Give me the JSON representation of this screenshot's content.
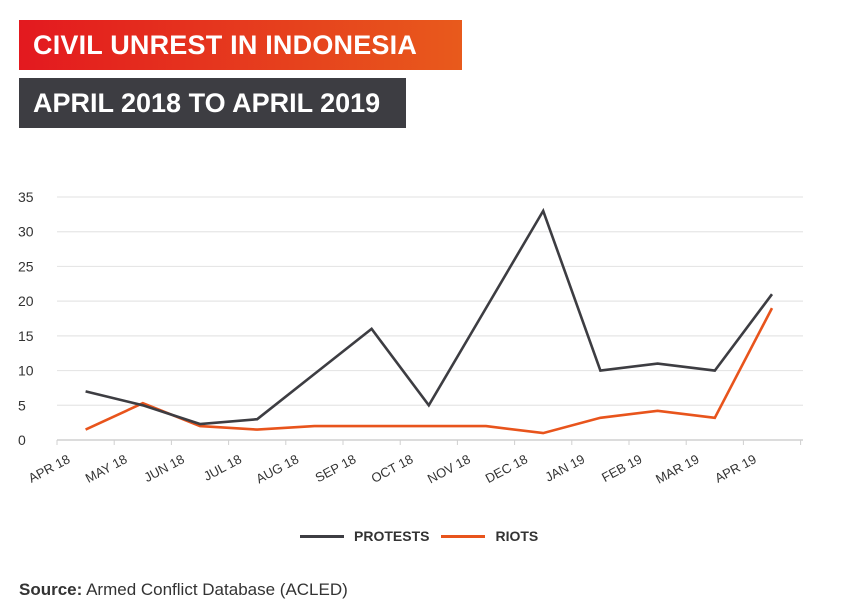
{
  "header": {
    "title": "CIVIL UNREST IN INDONESIA",
    "subtitle": "APRIL 2018 TO APRIL 2019",
    "title_gradient": [
      "#e3191f",
      "#e85a1c"
    ],
    "subtitle_bg": "#3d3d42"
  },
  "legend": {
    "items": [
      {
        "label": "PROTESTS",
        "color": "#3d3d42"
      },
      {
        "label": "RIOTS",
        "color": "#e8541c"
      }
    ]
  },
  "footer": {
    "source_label": "Source:",
    "source_text": " Armed Conflict Database (ACLED)"
  },
  "chart_data": {
    "type": "line",
    "title": "CIVIL UNREST IN INDONESIA — APRIL 2018 TO APRIL 2019",
    "xlabel": "",
    "ylabel": "",
    "categories": [
      "APR 18",
      "MAY 18",
      "JUN 18",
      "JUL 18",
      "AUG 18",
      "SEP 18",
      "OCT 18",
      "NOV 18",
      "DEC 18",
      "JAN 19",
      "FEB 19",
      "MAR 19",
      "APR 19"
    ],
    "series": [
      {
        "name": "PROTESTS",
        "color": "#3d3d42",
        "values": [
          7,
          5,
          2.3,
          3,
          9.5,
          16,
          5,
          19,
          33,
          10,
          11,
          10,
          21
        ]
      },
      {
        "name": "RIOTS",
        "color": "#e8541c",
        "values": [
          1.5,
          5.3,
          2,
          1.5,
          2,
          2,
          2,
          2,
          1,
          3.2,
          4.2,
          3.2,
          19
        ]
      }
    ],
    "yticks": [
      0,
      5,
      10,
      15,
      20,
      25,
      30,
      35
    ],
    "ylim": [
      0,
      35
    ],
    "grid": true,
    "legend_position": "bottom"
  }
}
